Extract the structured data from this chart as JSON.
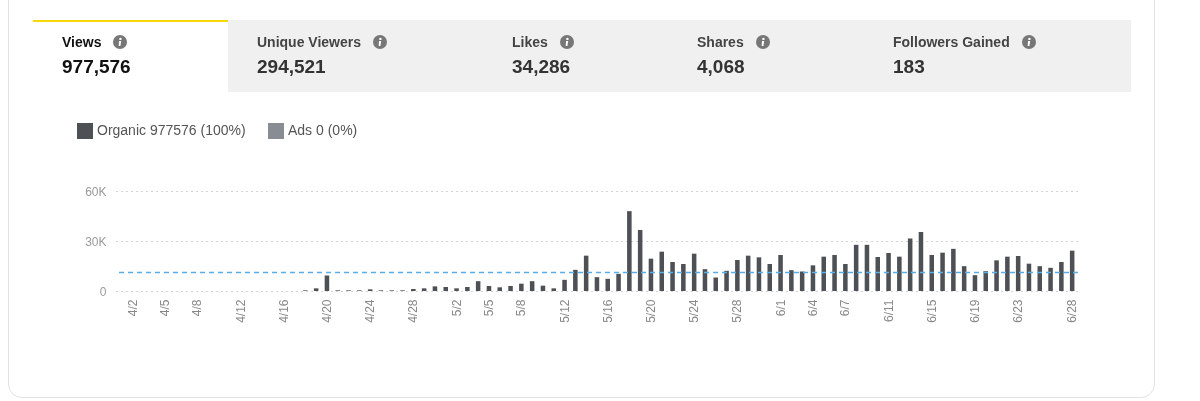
{
  "chart_data": [
    {
      "type": "other",
      "categories": [
        "Views",
        "Unique Viewers",
        "Likes",
        "Shares",
        "Followers Gained"
      ],
      "value_labels": [
        "977,576",
        "294,521",
        "34,286",
        "4,068",
        "183"
      ]
    },
    {
      "type": "bar",
      "categories": [
        "4/2",
        null,
        null,
        "4/5",
        null,
        null,
        "4/8",
        null,
        null,
        null,
        "4/12",
        null,
        null,
        null,
        "4/16",
        null,
        null,
        null,
        "4/20",
        null,
        null,
        null,
        "4/24",
        null,
        null,
        null,
        "4/28",
        null,
        null,
        null,
        "5/2",
        null,
        null,
        "5/5",
        null,
        null,
        "5/8",
        null,
        null,
        null,
        "5/12",
        null,
        null,
        null,
        "5/16",
        null,
        null,
        null,
        "5/20",
        null,
        null,
        null,
        "5/24",
        null,
        null,
        null,
        "5/28",
        null,
        null,
        null,
        "6/1",
        null,
        null,
        "6/4",
        null,
        null,
        "6/7",
        null,
        null,
        null,
        "6/11",
        null,
        null,
        null,
        "6/15",
        null,
        null,
        null,
        "6/19",
        null,
        null,
        null,
        "6/23",
        null,
        null,
        null,
        null,
        "6/28"
      ],
      "series": [
        {
          "name": "Organic 977576 (100%)",
          "color": "#4d5055",
          "values": [
            0,
            0,
            0,
            0,
            0,
            0,
            0,
            0,
            0,
            0,
            0,
            0,
            0,
            0,
            0,
            0,
            400,
            1600,
            9300,
            400,
            400,
            400,
            1000,
            400,
            400,
            400,
            1200,
            1600,
            2800,
            2400,
            1600,
            2400,
            5900,
            3000,
            2200,
            3000,
            4400,
            5900,
            3200,
            1600,
            6700,
            12700,
            21200,
            8300,
            7300,
            10300,
            47900,
            36600,
            19400,
            23600,
            17400,
            16200,
            22400,
            13100,
            8100,
            12100,
            18600,
            21200,
            20200,
            16200,
            21600,
            12500,
            11700,
            15400,
            20600,
            21600,
            16200,
            27700,
            27700,
            20400,
            22800,
            20600,
            31500,
            35400,
            21600,
            23000,
            25300,
            14900,
            9500,
            11900,
            18400,
            20600,
            21000,
            16400,
            14900,
            13900,
            17400,
            24200
          ]
        },
        {
          "name": "Ads 0 (0%)",
          "color": "#878d93",
          "values": [
            null,
            null,
            null,
            null,
            null,
            null,
            null,
            null,
            null,
            null,
            null,
            null,
            null,
            null,
            null,
            null,
            null,
            null,
            null,
            null,
            null,
            null,
            null,
            null,
            null,
            null,
            null,
            null,
            null,
            null,
            null,
            null,
            null,
            null,
            null,
            null,
            null,
            null,
            null,
            null,
            null,
            null,
            null,
            null,
            null,
            null,
            null,
            null,
            null,
            null,
            null,
            null,
            null,
            null,
            null,
            null,
            null,
            null,
            null,
            null,
            null,
            null,
            null,
            null,
            null,
            null,
            null,
            null,
            null,
            null,
            null,
            null,
            null,
            null,
            null,
            null,
            null,
            null,
            null,
            null,
            null,
            null,
            null,
            null,
            null,
            null,
            null,
            null
          ]
        }
      ],
      "ylim": [
        0,
        60000
      ],
      "yticks": [
        0,
        {
          "value": 30000,
          "label": "30K"
        },
        {
          "value": 60000,
          "label": "60K"
        }
      ],
      "ref_lines": [
        {
          "axis": "y",
          "value": 11100,
          "color": "#5aaee8",
          "line_style": "dashed"
        }
      ],
      "grid": "y",
      "legend": "top left"
    }
  ]
}
